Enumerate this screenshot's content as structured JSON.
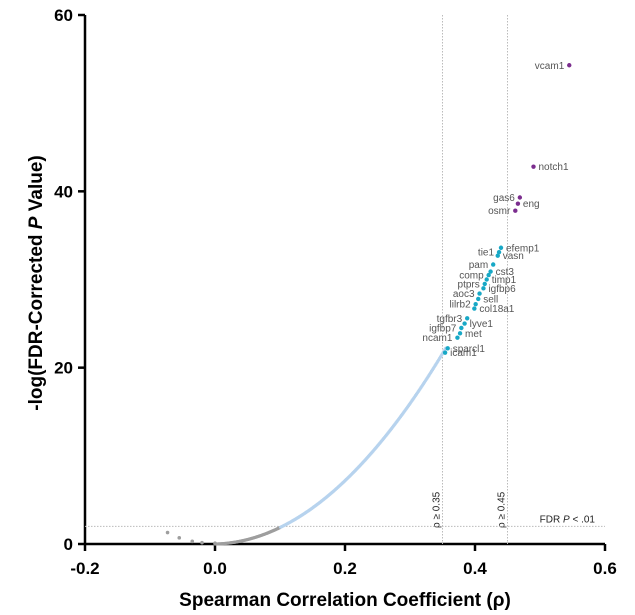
{
  "chart_data": {
    "type": "scatter",
    "title": "",
    "xlabel": "Spearman Correlation Coefficient (ρ)",
    "ylabel_parts": [
      "-log(FDR-Corrected ",
      "P",
      " Value)"
    ],
    "xlim": [
      -0.2,
      0.6
    ],
    "ylim": [
      0,
      60
    ],
    "x_ticks": [
      -0.2,
      0.0,
      0.2,
      0.4,
      0.6
    ],
    "x_tick_labels": [
      "-0.2",
      "0.0",
      "0.2",
      "0.4",
      "0.6"
    ],
    "y_ticks": [
      0,
      20,
      40,
      60
    ],
    "y_tick_labels": [
      "0",
      "20",
      "40",
      "60"
    ],
    "grid": false,
    "reference_lines": {
      "vertical": [
        {
          "x": 0.35,
          "label": "ρ ≥ 0.35"
        },
        {
          "x": 0.45,
          "label": "ρ ≥ 0.45"
        }
      ],
      "horizontal": [
        {
          "y": 2,
          "label_parts": [
            "FDR ",
            "P",
            " < .01"
          ]
        }
      ]
    },
    "colors": {
      "non_significant": "#9e9e9e",
      "background_curve": "#b7d3ee",
      "moderate": "#17a8c6",
      "strong": "#7b2d8e",
      "reference_line": "#bbbbbb"
    },
    "highlighted_points": [
      {
        "label": "vcam1",
        "x": 0.545,
        "y": 54.3,
        "group": "strong",
        "label_side": "left"
      },
      {
        "label": "notch1",
        "x": 0.49,
        "y": 42.8,
        "group": "strong",
        "label_side": "right"
      },
      {
        "label": "gas6",
        "x": 0.469,
        "y": 39.3,
        "group": "strong",
        "label_side": "left"
      },
      {
        "label": "eng",
        "x": 0.466,
        "y": 38.6,
        "group": "strong",
        "label_side": "right"
      },
      {
        "label": "osmr",
        "x": 0.462,
        "y": 37.8,
        "group": "strong",
        "label_side": "left"
      },
      {
        "label": "efemp1",
        "x": 0.44,
        "y": 33.6,
        "group": "moderate",
        "label_side": "right"
      },
      {
        "label": "tie1",
        "x": 0.437,
        "y": 33.1,
        "group": "moderate",
        "label_side": "left"
      },
      {
        "label": "vasn",
        "x": 0.435,
        "y": 32.7,
        "group": "moderate",
        "label_side": "right"
      },
      {
        "label": "pam",
        "x": 0.428,
        "y": 31.7,
        "group": "moderate",
        "label_side": "left"
      },
      {
        "label": "cst3",
        "x": 0.424,
        "y": 30.9,
        "group": "moderate",
        "label_side": "right"
      },
      {
        "label": "comp",
        "x": 0.421,
        "y": 30.5,
        "group": "moderate",
        "label_side": "left"
      },
      {
        "label": "timp1",
        "x": 0.418,
        "y": 30.0,
        "group": "moderate",
        "label_side": "right"
      },
      {
        "label": "ptprs",
        "x": 0.415,
        "y": 29.5,
        "group": "moderate",
        "label_side": "left"
      },
      {
        "label": "igfbp6",
        "x": 0.413,
        "y": 29.0,
        "group": "moderate",
        "label_side": "right"
      },
      {
        "label": "aoc3",
        "x": 0.407,
        "y": 28.4,
        "group": "moderate",
        "label_side": "left"
      },
      {
        "label": "sell",
        "x": 0.405,
        "y": 27.8,
        "group": "moderate",
        "label_side": "right"
      },
      {
        "label": "lilrb2",
        "x": 0.401,
        "y": 27.2,
        "group": "moderate",
        "label_side": "left"
      },
      {
        "label": "col18a1",
        "x": 0.399,
        "y": 26.7,
        "group": "moderate",
        "label_side": "right"
      },
      {
        "label": "tgfbr3",
        "x": 0.388,
        "y": 25.6,
        "group": "moderate",
        "label_side": "left"
      },
      {
        "label": "lyve1",
        "x": 0.384,
        "y": 25.0,
        "group": "moderate",
        "label_side": "right"
      },
      {
        "label": "igfbp7",
        "x": 0.379,
        "y": 24.5,
        "group": "moderate",
        "label_side": "left"
      },
      {
        "label": "met",
        "x": 0.377,
        "y": 23.9,
        "group": "moderate",
        "label_side": "right"
      },
      {
        "label": "ncam1",
        "x": 0.373,
        "y": 23.4,
        "group": "moderate",
        "label_side": "left"
      },
      {
        "label": "sparcl1",
        "x": 0.358,
        "y": 22.2,
        "group": "moderate",
        "label_side": "right"
      },
      {
        "label": "icam1",
        "x": 0.354,
        "y": 21.7,
        "group": "moderate",
        "label_side": "right"
      }
    ],
    "non_significant_points": [
      {
        "x": -0.073,
        "y": 1.3
      },
      {
        "x": -0.055,
        "y": 0.7
      },
      {
        "x": -0.035,
        "y": 0.3
      },
      {
        "x": -0.02,
        "y": 0.15
      },
      {
        "x": 0.0,
        "y": 0.1
      }
    ]
  }
}
